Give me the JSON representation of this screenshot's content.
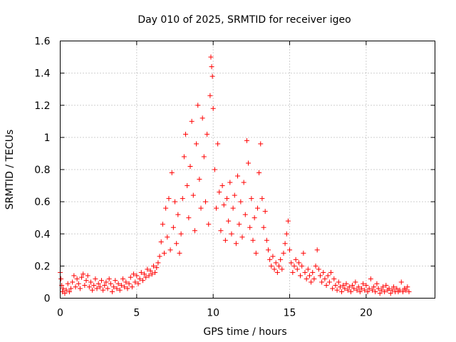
{
  "chart_data": {
    "type": "scatter",
    "title": "Day 010 of 2025, SRMTID for receiver igeo",
    "xlabel": "GPS time / hours",
    "ylabel": "SRMTID / TECUs",
    "xlim": [
      0,
      24.5
    ],
    "ylim": [
      0,
      1.6
    ],
    "xticks": [
      0,
      5,
      10,
      15,
      20
    ],
    "yticks": [
      0,
      0.2,
      0.4,
      0.6,
      0.8,
      1,
      1.2,
      1.4,
      1.6
    ],
    "xtick_labels": [
      "0",
      "5",
      "10",
      "15",
      "20"
    ],
    "ytick_labels": [
      "0",
      "0.2",
      "0.4",
      "0.6",
      "0.8",
      "1",
      "1.2",
      "1.4",
      "1.6"
    ],
    "grid": true,
    "marker": "+",
    "color": "#ff0000",
    "series": [
      {
        "name": "SRMTID",
        "points": [
          [
            0.0,
            0.16
          ],
          [
            0.05,
            0.12
          ],
          [
            0.1,
            0.08
          ],
          [
            0.15,
            0.04
          ],
          [
            0.2,
            0.06
          ],
          [
            0.3,
            0.03
          ],
          [
            0.4,
            0.05
          ],
          [
            0.5,
            0.09
          ],
          [
            0.6,
            0.04
          ],
          [
            0.7,
            0.06
          ],
          [
            0.8,
            0.1
          ],
          [
            0.9,
            0.14
          ],
          [
            1.0,
            0.07
          ],
          [
            1.1,
            0.12
          ],
          [
            1.2,
            0.09
          ],
          [
            1.3,
            0.06
          ],
          [
            1.4,
            0.13
          ],
          [
            1.5,
            0.15
          ],
          [
            1.6,
            0.08
          ],
          [
            1.7,
            0.11
          ],
          [
            1.8,
            0.14
          ],
          [
            1.9,
            0.07
          ],
          [
            2.0,
            0.1
          ],
          [
            2.1,
            0.05
          ],
          [
            2.2,
            0.08
          ],
          [
            2.3,
            0.12
          ],
          [
            2.4,
            0.06
          ],
          [
            2.5,
            0.09
          ],
          [
            2.6,
            0.07
          ],
          [
            2.7,
            0.11
          ],
          [
            2.8,
            0.05
          ],
          [
            2.9,
            0.08
          ],
          [
            3.0,
            0.1
          ],
          [
            3.1,
            0.06
          ],
          [
            3.2,
            0.12
          ],
          [
            3.3,
            0.09
          ],
          [
            3.4,
            0.04
          ],
          [
            3.5,
            0.07
          ],
          [
            3.6,
            0.11
          ],
          [
            3.7,
            0.06
          ],
          [
            3.8,
            0.09
          ],
          [
            3.9,
            0.05
          ],
          [
            4.0,
            0.08
          ],
          [
            4.1,
            0.12
          ],
          [
            4.2,
            0.07
          ],
          [
            4.3,
            0.1
          ],
          [
            4.4,
            0.06
          ],
          [
            4.5,
            0.09
          ],
          [
            4.6,
            0.13
          ],
          [
            4.7,
            0.07
          ],
          [
            4.8,
            0.15
          ],
          [
            4.9,
            0.1
          ],
          [
            5.0,
            0.14
          ],
          [
            5.1,
            0.09
          ],
          [
            5.2,
            0.12
          ],
          [
            5.3,
            0.16
          ],
          [
            5.4,
            0.11
          ],
          [
            5.5,
            0.15
          ],
          [
            5.6,
            0.13
          ],
          [
            5.7,
            0.18
          ],
          [
            5.8,
            0.14
          ],
          [
            5.9,
            0.17
          ],
          [
            6.0,
            0.15
          ],
          [
            6.1,
            0.2
          ],
          [
            6.2,
            0.16
          ],
          [
            6.3,
            0.19
          ],
          [
            6.4,
            0.22
          ],
          [
            6.5,
            0.26
          ],
          [
            6.6,
            0.35
          ],
          [
            6.7,
            0.46
          ],
          [
            6.8,
            0.28
          ],
          [
            6.9,
            0.56
          ],
          [
            7.0,
            0.38
          ],
          [
            7.1,
            0.62
          ],
          [
            7.2,
            0.3
          ],
          [
            7.3,
            0.78
          ],
          [
            7.4,
            0.44
          ],
          [
            7.5,
            0.6
          ],
          [
            7.6,
            0.34
          ],
          [
            7.7,
            0.52
          ],
          [
            7.8,
            0.28
          ],
          [
            7.9,
            0.4
          ],
          [
            8.0,
            0.62
          ],
          [
            8.1,
            0.88
          ],
          [
            8.2,
            1.02
          ],
          [
            8.3,
            0.7
          ],
          [
            8.4,
            0.5
          ],
          [
            8.5,
            0.82
          ],
          [
            8.6,
            1.1
          ],
          [
            8.7,
            0.64
          ],
          [
            8.8,
            0.42
          ],
          [
            8.9,
            0.96
          ],
          [
            9.0,
            1.2
          ],
          [
            9.1,
            0.74
          ],
          [
            9.2,
            0.56
          ],
          [
            9.3,
            1.12
          ],
          [
            9.4,
            0.88
          ],
          [
            9.5,
            0.6
          ],
          [
            9.6,
            1.02
          ],
          [
            9.7,
            0.46
          ],
          [
            9.8,
            1.26
          ],
          [
            9.85,
            1.5
          ],
          [
            9.9,
            1.44
          ],
          [
            9.95,
            1.38
          ],
          [
            10.0,
            1.18
          ],
          [
            10.1,
            0.8
          ],
          [
            10.2,
            0.56
          ],
          [
            10.3,
            0.96
          ],
          [
            10.4,
            0.66
          ],
          [
            10.5,
            0.42
          ],
          [
            10.6,
            0.7
          ],
          [
            10.7,
            0.58
          ],
          [
            10.8,
            0.36
          ],
          [
            10.9,
            0.62
          ],
          [
            11.0,
            0.48
          ],
          [
            11.1,
            0.72
          ],
          [
            11.2,
            0.4
          ],
          [
            11.3,
            0.56
          ],
          [
            11.4,
            0.64
          ],
          [
            11.5,
            0.34
          ],
          [
            11.6,
            0.76
          ],
          [
            11.7,
            0.46
          ],
          [
            11.8,
            0.6
          ],
          [
            11.9,
            0.38
          ],
          [
            12.0,
            0.72
          ],
          [
            12.1,
            0.52
          ],
          [
            12.2,
            0.98
          ],
          [
            12.3,
            0.84
          ],
          [
            12.4,
            0.44
          ],
          [
            12.5,
            0.62
          ],
          [
            12.6,
            0.36
          ],
          [
            12.7,
            0.5
          ],
          [
            12.8,
            0.28
          ],
          [
            12.9,
            0.56
          ],
          [
            13.0,
            0.78
          ],
          [
            13.1,
            0.96
          ],
          [
            13.2,
            0.62
          ],
          [
            13.3,
            0.44
          ],
          [
            13.4,
            0.54
          ],
          [
            13.5,
            0.36
          ],
          [
            13.6,
            0.3
          ],
          [
            13.7,
            0.24
          ],
          [
            13.8,
            0.2
          ],
          [
            13.9,
            0.26
          ],
          [
            14.0,
            0.18
          ],
          [
            14.1,
            0.22
          ],
          [
            14.2,
            0.16
          ],
          [
            14.3,
            0.2
          ],
          [
            14.4,
            0.24
          ],
          [
            14.5,
            0.18
          ],
          [
            14.6,
            0.28
          ],
          [
            14.7,
            0.34
          ],
          [
            14.8,
            0.4
          ],
          [
            14.9,
            0.48
          ],
          [
            15.0,
            0.3
          ],
          [
            15.1,
            0.22
          ],
          [
            15.2,
            0.16
          ],
          [
            15.3,
            0.2
          ],
          [
            15.4,
            0.24
          ],
          [
            15.5,
            0.18
          ],
          [
            15.6,
            0.22
          ],
          [
            15.7,
            0.14
          ],
          [
            15.8,
            0.2
          ],
          [
            15.9,
            0.28
          ],
          [
            16.0,
            0.16
          ],
          [
            16.1,
            0.12
          ],
          [
            16.2,
            0.18
          ],
          [
            16.3,
            0.14
          ],
          [
            16.4,
            0.1
          ],
          [
            16.5,
            0.16
          ],
          [
            16.6,
            0.12
          ],
          [
            16.7,
            0.2
          ],
          [
            16.8,
            0.3
          ],
          [
            16.9,
            0.18
          ],
          [
            17.0,
            0.14
          ],
          [
            17.1,
            0.1
          ],
          [
            17.2,
            0.16
          ],
          [
            17.3,
            0.12
          ],
          [
            17.4,
            0.08
          ],
          [
            17.5,
            0.14
          ],
          [
            17.6,
            0.1
          ],
          [
            17.7,
            0.16
          ],
          [
            17.8,
            0.06
          ],
          [
            17.9,
            0.12
          ],
          [
            18.0,
            0.08
          ],
          [
            18.1,
            0.05
          ],
          [
            18.2,
            0.1
          ],
          [
            18.3,
            0.07
          ],
          [
            18.4,
            0.04
          ],
          [
            18.5,
            0.08
          ],
          [
            18.6,
            0.06
          ],
          [
            18.7,
            0.09
          ],
          [
            18.8,
            0.05
          ],
          [
            18.9,
            0.07
          ],
          [
            19.0,
            0.04
          ],
          [
            19.1,
            0.08
          ],
          [
            19.2,
            0.06
          ],
          [
            19.3,
            0.1
          ],
          [
            19.4,
            0.05
          ],
          [
            19.5,
            0.07
          ],
          [
            19.6,
            0.04
          ],
          [
            19.7,
            0.06
          ],
          [
            19.8,
            0.09
          ],
          [
            19.9,
            0.05
          ],
          [
            20.0,
            0.08
          ],
          [
            20.1,
            0.04
          ],
          [
            20.2,
            0.06
          ],
          [
            20.3,
            0.12
          ],
          [
            20.4,
            0.05
          ],
          [
            20.5,
            0.07
          ],
          [
            20.6,
            0.04
          ],
          [
            20.7,
            0.09
          ],
          [
            20.8,
            0.06
          ],
          [
            20.9,
            0.03
          ],
          [
            21.0,
            0.05
          ],
          [
            21.1,
            0.07
          ],
          [
            21.2,
            0.04
          ],
          [
            21.3,
            0.08
          ],
          [
            21.4,
            0.05
          ],
          [
            21.5,
            0.06
          ],
          [
            21.6,
            0.03
          ],
          [
            21.7,
            0.05
          ],
          [
            21.8,
            0.07
          ],
          [
            21.9,
            0.04
          ],
          [
            22.0,
            0.06
          ],
          [
            22.1,
            0.04
          ],
          [
            22.2,
            0.05
          ],
          [
            22.3,
            0.1
          ],
          [
            22.4,
            0.04
          ],
          [
            22.5,
            0.06
          ],
          [
            22.6,
            0.05
          ],
          [
            22.7,
            0.07
          ],
          [
            22.8,
            0.04
          ]
        ]
      }
    ]
  }
}
